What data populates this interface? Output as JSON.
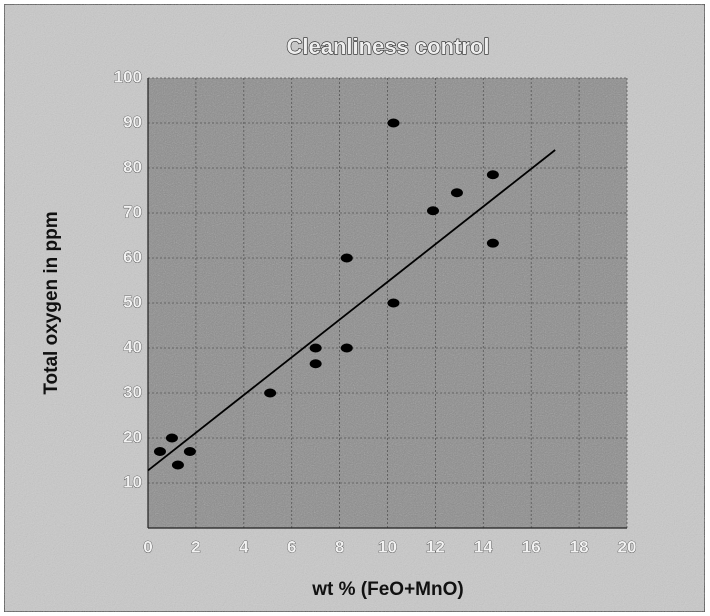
{
  "chart_data": {
    "type": "scatter",
    "title": "Cleanliness control",
    "x_label": "wt % (FeO+MnO)",
    "y_label": "Total oxygen in ppm",
    "series": [
      {
        "color": "#000000",
        "x": [
          0.5,
          1.0,
          1.25,
          1.75,
          5.1,
          7,
          7,
          8.3,
          8.3,
          10.25,
          10.25,
          11.9,
          12.9,
          14.4,
          14.4
        ],
        "values": [
          17,
          20,
          14,
          17,
          30,
          40,
          36.5,
          60,
          40,
          90,
          50,
          70.5,
          74.5,
          78.5,
          63.3
        ]
      }
    ],
    "trendline": {
      "color": "#000000",
      "x": [
        0,
        17
      ],
      "values": [
        12.8,
        84
      ]
    },
    "xlim": [
      0,
      20
    ],
    "xticks": [
      0,
      2,
      4,
      6,
      8,
      10,
      12,
      14,
      16,
      18,
      20
    ],
    "ylim": [
      0,
      100
    ],
    "yticks": [
      10,
      20,
      30,
      40,
      50,
      60,
      70,
      80,
      90,
      100
    ],
    "grid": true
  }
}
